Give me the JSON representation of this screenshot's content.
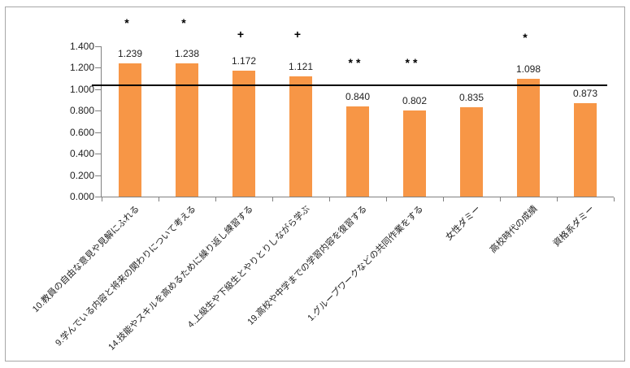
{
  "chart_data": {
    "type": "bar",
    "title": "",
    "xlabel": "",
    "ylabel": "",
    "categories": [
      "10.教員の自由な意見や見解にふれる",
      "9.学んでいる内容と将来の関わりについて考える",
      "14.技能やスキルを高めるために繰り返し練習する",
      "4.上級生や下級生とやりとりしながら学ぶ",
      "19.高校や中学までの学習内容を復習する",
      "1.グループワークなどの共同作業をする",
      "女性ダミー",
      "高校時代の成績",
      "資格系ダミー"
    ],
    "values": [
      1.239,
      1.238,
      1.172,
      1.121,
      0.84,
      0.802,
      0.835,
      1.098,
      0.873
    ],
    "data_labels": [
      "1.239",
      "1.238",
      "1.172",
      "1.121",
      "0.840",
      "0.802",
      "0.835",
      "1.098",
      "0.873"
    ],
    "significance_markers": [
      "*",
      "*",
      "+",
      "+",
      "**",
      "**",
      "",
      "*",
      ""
    ],
    "y_tick_labels": [
      "0.000",
      "0.200",
      "0.400",
      "0.600",
      "0.800",
      "1.000",
      "1.200",
      "1.400"
    ],
    "y_tick_values": [
      0,
      0.2,
      0.4,
      0.6,
      0.8,
      1.0,
      1.2,
      1.4
    ],
    "ylim": [
      0,
      1.4
    ],
    "reference_line": 1.0,
    "grid": "off",
    "legend": "none",
    "bar_color": "#F79646",
    "reference_line_color": "#000000",
    "axis_color": "#808080",
    "text_color": "#1f1f1f"
  }
}
